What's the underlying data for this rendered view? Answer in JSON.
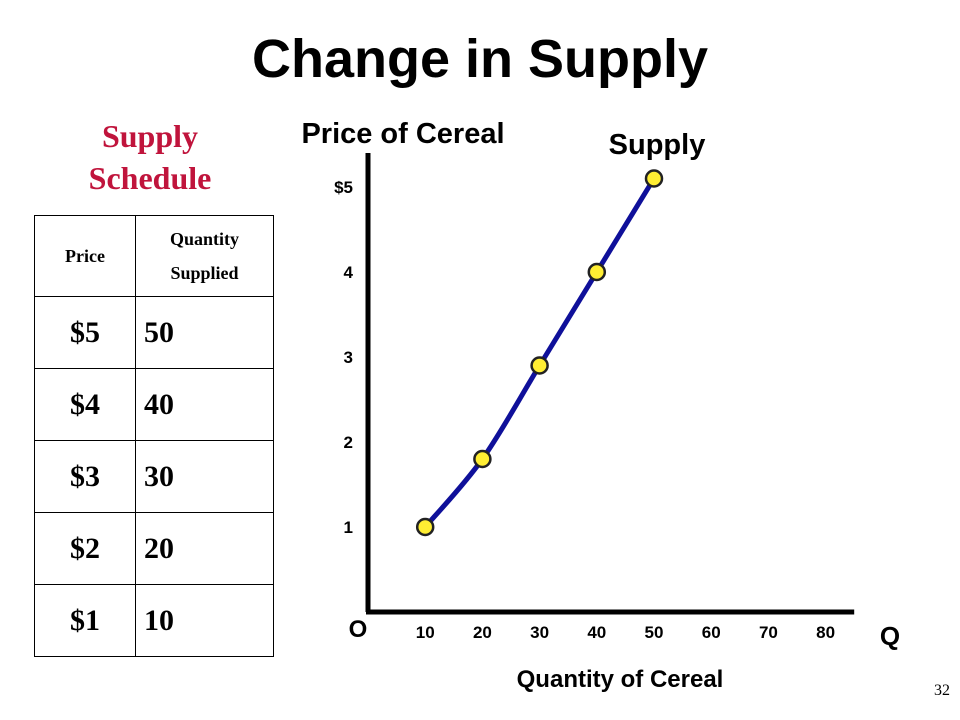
{
  "slide": {
    "title": "Change in Supply",
    "page_number": "32"
  },
  "schedule": {
    "title_line1": "Supply",
    "title_line2": "Schedule",
    "headers": {
      "price": "Price",
      "qty_line1": "Quantity",
      "qty_line2": "Supplied"
    },
    "rows": [
      {
        "price": "$5",
        "qty": "50"
      },
      {
        "price": "$4",
        "qty": "40"
      },
      {
        "price": "$3",
        "qty": "30"
      },
      {
        "price": "$2",
        "qty": "20"
      },
      {
        "price": "$1",
        "qty": "10"
      }
    ]
  },
  "chart_data": {
    "type": "line",
    "title": "Price of Cereal",
    "ylabel": "Price of Cereal",
    "xlabel": "Quantity of Cereal",
    "x_axis_end_label": "Q",
    "origin_label": "O",
    "series_label": "Supply",
    "x_ticks": [
      "10",
      "20",
      "30",
      "40",
      "50",
      "60",
      "70",
      "80"
    ],
    "y_ticks": [
      "1",
      "2",
      "3",
      "4",
      "$5"
    ],
    "xlim": [
      0,
      85
    ],
    "ylim": [
      0,
      5.4
    ],
    "grid": false,
    "series": [
      {
        "name": "Supply",
        "x": [
          10,
          20,
          30,
          40,
          50
        ],
        "y": [
          1,
          1.8,
          2.9,
          4,
          5.1
        ]
      }
    ],
    "colors": {
      "curve": "#0f109a",
      "point_fill": "#ffee33",
      "point_stroke": "#222222",
      "axis": "#000000"
    }
  }
}
